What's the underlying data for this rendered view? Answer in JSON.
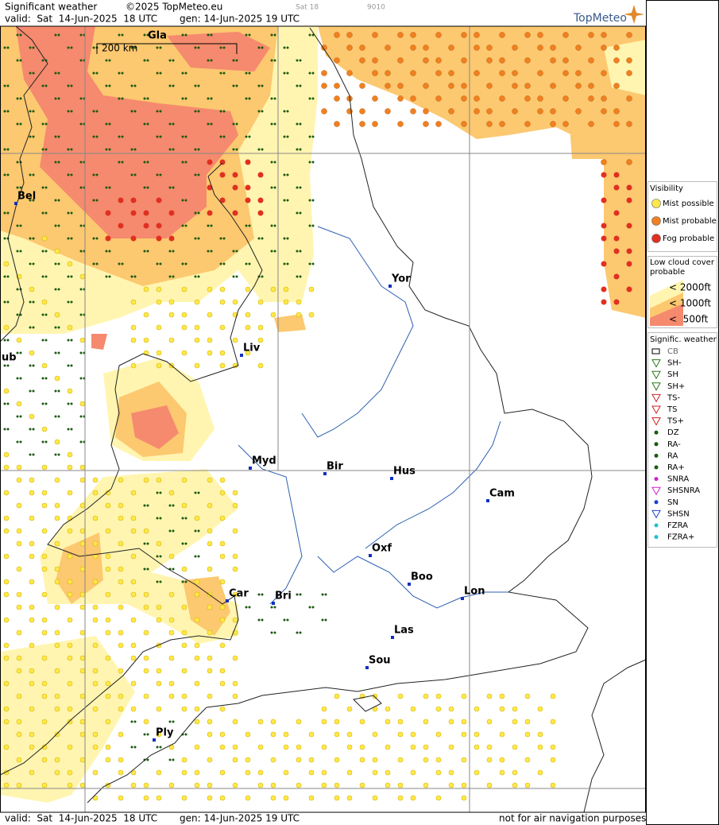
{
  "header": {
    "title": "Significant weather",
    "copyright": "©2025 TopMeteo.eu",
    "frame": "Sat 18",
    "code": "9010",
    "valid": "valid:  Sat  14-Jun-2025  18 UTC",
    "generated": "gen: 14-Jun-2025 19 UTC",
    "logo": "TopMeteo"
  },
  "map": {
    "scale": "200 km",
    "places": [
      "Gla",
      "Bel",
      "ub",
      "Yor",
      "Liv",
      "Myd",
      "Bir",
      "Hus",
      "Cam",
      "Oxf",
      "Boo",
      "Lon",
      "Car",
      "Bri",
      "Las",
      "Sou",
      "Ply"
    ]
  },
  "legend": {
    "visibility": {
      "title": "Visibility",
      "items": [
        "Mist possible",
        "Mist probable",
        "Fog probable"
      ]
    },
    "low_cloud": {
      "title_lines": [
        "Low cloud cover",
        "probable"
      ],
      "items": [
        "< 2000ft",
        "< 1000ft",
        "<  500ft"
      ]
    },
    "weather": {
      "title": "Signific. weather",
      "items": [
        "CB",
        "SH-",
        "SH",
        "SH+",
        "TS-",
        "TS",
        "TS+",
        "DZ",
        "RA-",
        "RA",
        "RA+",
        "SNRA",
        "SHSNRA",
        "SN",
        "SHSN",
        "FZRA",
        "FZRA+"
      ]
    }
  },
  "footer": {
    "valid": "valid:  Sat  14-Jun-2025  18 UTC",
    "generated": "gen: 14-Jun-2025 19 UTC",
    "disclaimer": "not for air navigation purposes"
  }
}
